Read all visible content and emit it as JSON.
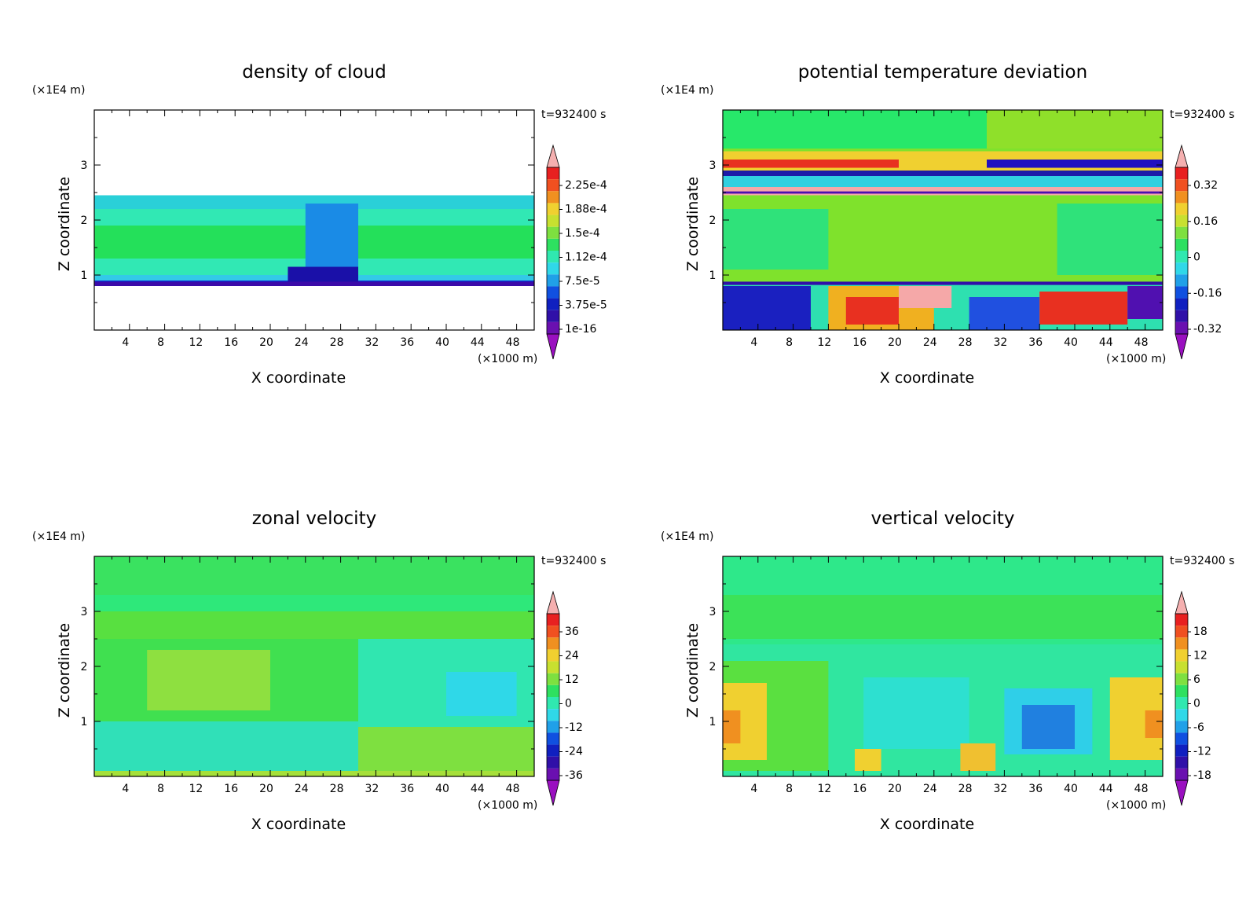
{
  "chart_data": [
    {
      "type": "heatmap",
      "title": "density of cloud",
      "xlabel": "X coordinate",
      "ylabel": "Z coordinate",
      "x_unit": "(×1000 m)",
      "y_unit": "(×1E4 m)",
      "time_label": "t=932400 s",
      "xlim": [
        0,
        50
      ],
      "ylim": [
        0,
        4
      ],
      "x_ticks": [
        "4",
        "8",
        "12",
        "16",
        "20",
        "24",
        "28",
        "32",
        "36",
        "40",
        "44",
        "48"
      ],
      "y_ticks": [
        "1",
        "2",
        "3"
      ],
      "colorbar_labels": [
        "2.25e-4",
        "1.88e-4",
        "1.5e-4",
        "1.12e-4",
        "7.5e-5",
        "3.75e-5",
        "1e-16"
      ],
      "background": "#ffffff",
      "fields": [
        {
          "x0": 0,
          "x1": 50,
          "y0": 0.8,
          "y1": 2.45,
          "color": "#0a2cd0"
        },
        {
          "x0": 0,
          "x1": 50,
          "y0": 0.9,
          "y1": 2.4,
          "color": "#33c9e8"
        },
        {
          "x0": 0,
          "x1": 50,
          "y0": 1.0,
          "y1": 2.3,
          "color": "#31e8b4"
        },
        {
          "x0": 0,
          "x1": 50,
          "y0": 1.3,
          "y1": 1.9,
          "color": "#24e05a"
        },
        {
          "x0": 0,
          "x1": 50,
          "y0": 2.2,
          "y1": 2.45,
          "color": "#2ad0d8"
        },
        {
          "x0": 24,
          "x1": 30,
          "y0": 1.0,
          "y1": 2.3,
          "color": "#1a8be6"
        },
        {
          "x0": 22,
          "x1": 30,
          "y0": 0.85,
          "y1": 1.15,
          "color": "#1a10a8"
        },
        {
          "x0": 0,
          "x1": 50,
          "y0": 0.8,
          "y1": 0.88,
          "color": "#3b0aa8"
        }
      ]
    },
    {
      "type": "heatmap",
      "title": "potential temperature deviation",
      "xlabel": "X coordinate",
      "ylabel": "Z coordinate",
      "x_unit": "(×1000 m)",
      "y_unit": "(×1E4 m)",
      "time_label": "t=932400 s",
      "xlim": [
        0,
        50
      ],
      "ylim": [
        0,
        4
      ],
      "x_ticks": [
        "4",
        "8",
        "12",
        "16",
        "20",
        "24",
        "28",
        "32",
        "36",
        "40",
        "44",
        "48"
      ],
      "y_ticks": [
        "1",
        "2",
        "3"
      ],
      "colorbar_labels": [
        "0.32",
        "0.16",
        "0",
        "-0.16",
        "-0.32"
      ],
      "background": "#7fe22c",
      "fields": [
        {
          "x0": 0,
          "x1": 50,
          "y0": 3.3,
          "y1": 4.0,
          "color": "#27e86a"
        },
        {
          "x0": 30,
          "x1": 50,
          "y0": 3.3,
          "y1": 4.0,
          "color": "#8fe02a"
        },
        {
          "x0": 0,
          "x1": 50,
          "y0": 2.9,
          "y1": 3.25,
          "color": "#f0d030"
        },
        {
          "x0": 0,
          "x1": 20,
          "y0": 2.95,
          "y1": 3.1,
          "color": "#e83020"
        },
        {
          "x0": 30,
          "x1": 50,
          "y0": 2.95,
          "y1": 3.1,
          "color": "#2010c0"
        },
        {
          "x0": 0,
          "x1": 50,
          "y0": 2.8,
          "y1": 2.9,
          "color": "#1c1aa8"
        },
        {
          "x0": 0,
          "x1": 50,
          "y0": 2.6,
          "y1": 2.8,
          "color": "#30d0e0"
        },
        {
          "x0": 0,
          "x1": 50,
          "y0": 2.45,
          "y1": 2.6,
          "color": "#f5a8a8"
        },
        {
          "x0": 0,
          "x1": 50,
          "y0": 2.48,
          "y1": 2.52,
          "color": "#4a10b0"
        },
        {
          "x0": 0,
          "x1": 12,
          "y0": 1.1,
          "y1": 2.2,
          "color": "#2fe27a"
        },
        {
          "x0": 38,
          "x1": 50,
          "y0": 1.0,
          "y1": 2.3,
          "color": "#2fe27a"
        },
        {
          "x0": 0,
          "x1": 50,
          "y0": 0,
          "y1": 0.85,
          "color": "#2ee0b0"
        },
        {
          "x0": 0,
          "x1": 10,
          "y0": 0,
          "y1": 0.8,
          "color": "#1a20c0"
        },
        {
          "x0": 12,
          "x1": 24,
          "y0": 0,
          "y1": 0.8,
          "color": "#f0b020"
        },
        {
          "x0": 14,
          "x1": 20,
          "y0": 0.1,
          "y1": 0.6,
          "color": "#e83020"
        },
        {
          "x0": 20,
          "x1": 26,
          "y0": 0.4,
          "y1": 0.8,
          "color": "#f5a8a8"
        },
        {
          "x0": 28,
          "x1": 36,
          "y0": 0,
          "y1": 0.6,
          "color": "#2050e0"
        },
        {
          "x0": 36,
          "x1": 46,
          "y0": 0.1,
          "y1": 0.7,
          "color": "#e83020"
        },
        {
          "x0": 46,
          "x1": 50,
          "y0": 0.2,
          "y1": 0.8,
          "color": "#5010b0"
        },
        {
          "x0": 0,
          "x1": 50,
          "y0": 0.82,
          "y1": 0.88,
          "color": "#3010a8"
        }
      ]
    },
    {
      "type": "heatmap",
      "title": "zonal velocity",
      "xlabel": "X coordinate",
      "ylabel": "Z coordinate",
      "x_unit": "(×1000 m)",
      "y_unit": "(×1E4 m)",
      "time_label": "t=932400 s",
      "xlim": [
        0,
        50
      ],
      "ylim": [
        0,
        4
      ],
      "x_ticks": [
        "4",
        "8",
        "12",
        "16",
        "20",
        "24",
        "28",
        "32",
        "36",
        "40",
        "44",
        "48"
      ],
      "y_ticks": [
        "1",
        "2",
        "3"
      ],
      "colorbar_labels": [
        "36",
        "24",
        "12",
        "0",
        "-12",
        "-24",
        "-36"
      ],
      "background": "#2ee87a",
      "fields": [
        {
          "x0": 0,
          "x1": 50,
          "y0": 3.3,
          "y1": 4.0,
          "color": "#3ae260"
        },
        {
          "x0": 0,
          "x1": 50,
          "y0": 2.5,
          "y1": 3.0,
          "color": "#58e040"
        },
        {
          "x0": 0,
          "x1": 50,
          "y0": 1.0,
          "y1": 2.5,
          "color": "#40e050"
        },
        {
          "x0": 6,
          "x1": 20,
          "y0": 1.2,
          "y1": 2.3,
          "color": "#8ee040"
        },
        {
          "x0": 30,
          "x1": 50,
          "y0": 0.8,
          "y1": 2.5,
          "color": "#30e6b0"
        },
        {
          "x0": 40,
          "x1": 48,
          "y0": 1.1,
          "y1": 1.9,
          "color": "#2fd8e8"
        },
        {
          "x0": 0,
          "x1": 30,
          "y0": 0.1,
          "y1": 1.0,
          "color": "#30e0b8"
        },
        {
          "x0": 30,
          "x1": 50,
          "y0": 0.1,
          "y1": 0.9,
          "color": "#7ee040"
        },
        {
          "x0": 0,
          "x1": 50,
          "y0": 0.0,
          "y1": 0.1,
          "color": "#a6e03a"
        }
      ]
    },
    {
      "type": "heatmap",
      "title": "vertical velocity",
      "xlabel": "X coordinate",
      "ylabel": "Z coordinate",
      "x_unit": "(×1000 m)",
      "y_unit": "(×1E4 m)",
      "time_label": "t=932400 s",
      "xlim": [
        0,
        50
      ],
      "ylim": [
        0,
        4
      ],
      "x_ticks": [
        "4",
        "8",
        "12",
        "16",
        "20",
        "24",
        "28",
        "32",
        "36",
        "40",
        "44",
        "48"
      ],
      "y_ticks": [
        "1",
        "2",
        "3"
      ],
      "colorbar_labels": [
        "18",
        "12",
        "6",
        "0",
        "-6",
        "-12",
        "-18"
      ],
      "background": "#2ee88a",
      "fields": [
        {
          "x0": 0,
          "x1": 50,
          "y0": 2.5,
          "y1": 3.3,
          "color": "#3ce258"
        },
        {
          "x0": 0,
          "x1": 50,
          "y0": 0.0,
          "y1": 2.4,
          "color": "#30e6a0"
        },
        {
          "x0": 0,
          "x1": 12,
          "y0": 0.1,
          "y1": 2.1,
          "color": "#5ae040"
        },
        {
          "x0": 0,
          "x1": 5,
          "y0": 0.3,
          "y1": 1.7,
          "color": "#f0d030"
        },
        {
          "x0": 0,
          "x1": 2,
          "y0": 0.6,
          "y1": 1.2,
          "color": "#f09020"
        },
        {
          "x0": 44,
          "x1": 50,
          "y0": 0.3,
          "y1": 1.8,
          "color": "#f0d030"
        },
        {
          "x0": 48,
          "x1": 50,
          "y0": 0.7,
          "y1": 1.2,
          "color": "#f09020"
        },
        {
          "x0": 16,
          "x1": 28,
          "y0": 0.5,
          "y1": 1.8,
          "color": "#2de0d0"
        },
        {
          "x0": 32,
          "x1": 42,
          "y0": 0.4,
          "y1": 1.6,
          "color": "#2fcfe8"
        },
        {
          "x0": 34,
          "x1": 40,
          "y0": 0.5,
          "y1": 1.3,
          "color": "#2080e0"
        },
        {
          "x0": 15,
          "x1": 18,
          "y0": 0.1,
          "y1": 0.5,
          "color": "#f0d030"
        },
        {
          "x0": 27,
          "x1": 31,
          "y0": 0.1,
          "y1": 0.6,
          "color": "#f0c030"
        }
      ]
    }
  ],
  "colorbar_colors": [
    "#f5b0b0",
    "#e82020",
    "#f05020",
    "#f09020",
    "#f0d030",
    "#c8e030",
    "#7ee040",
    "#2ee060",
    "#30e8b0",
    "#30d8e8",
    "#20a0e8",
    "#1050e0",
    "#1020c0",
    "#3010a8",
    "#6a10b0",
    "#9a10c0"
  ]
}
